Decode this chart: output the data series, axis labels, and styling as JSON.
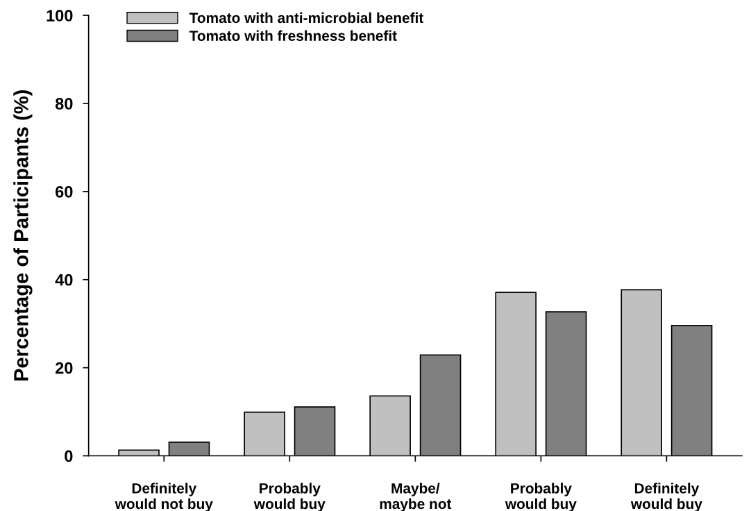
{
  "chart_data": {
    "type": "bar",
    "ylabel": "Percentage of Participants (%)",
    "categories": [
      "Definitely\nwould not buy",
      "Probably\nwould buy",
      "Maybe/\nmaybe not",
      "Probably\nwould buy",
      "Definitely\nwould buy"
    ],
    "series": [
      {
        "name": "Tomato with anti-microbial benefit",
        "color": "#c0c0c0",
        "values": [
          1.3,
          9.9,
          13.6,
          37.1,
          37.7
        ]
      },
      {
        "name": "Tomato with freshness benefit",
        "color": "#808080",
        "values": [
          3.1,
          11.1,
          22.9,
          32.7,
          29.6
        ]
      }
    ],
    "ylim": [
      0,
      100
    ],
    "yticks": [
      0,
      20,
      40,
      60,
      80,
      100
    ],
    "grid": false,
    "legend": "top left"
  }
}
